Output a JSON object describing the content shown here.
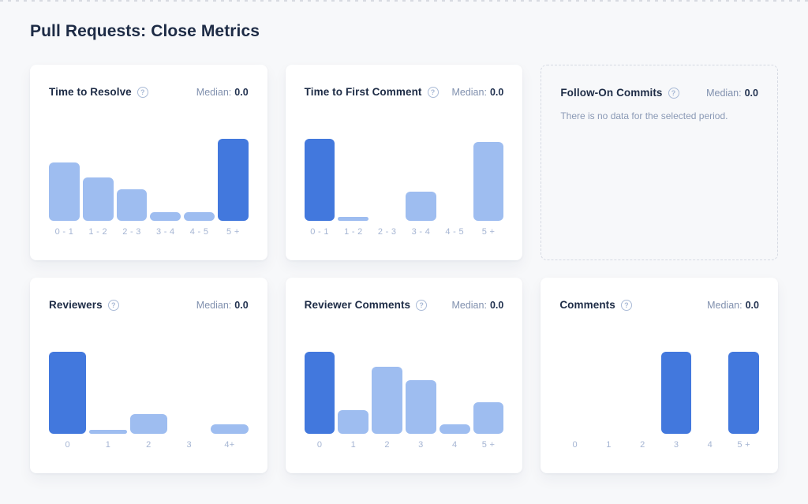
{
  "page": {
    "title": "Pull Requests: Close Metrics"
  },
  "labels": {
    "median_prefix": "Median:",
    "help_icon_glyph": "?"
  },
  "colors": {
    "page_background": "#f7f8fa",
    "card_background": "#ffffff",
    "bar_highlight": "#4278dd",
    "bar_default": "#9ebdf0",
    "axis_label": "#a5b5d3",
    "heading_text": "#1d2b45",
    "median_label": "#8090ae",
    "median_value": "#223250",
    "no_data_text": "#8a99b5",
    "dashed_border": "#d6dae3"
  },
  "chart_data": [
    {
      "type": "bar",
      "title": "Time to Resolve",
      "median": "0.0",
      "categories": [
        "0 - 1",
        "1 - 2",
        "2 - 3",
        "3 - 4",
        "4 - 5",
        "5 +"
      ],
      "values_pct_of_max": [
        71,
        53,
        38,
        11,
        11,
        100
      ],
      "highlighted_categories": [
        "5 +"
      ],
      "y_axis": "hidden",
      "grid": false,
      "legend": "none"
    },
    {
      "type": "bar",
      "title": "Time to First Comment",
      "median": "0.0",
      "categories": [
        "0 - 1",
        "1 - 2",
        "2 - 3",
        "3 - 4",
        "4 - 5",
        "5 +"
      ],
      "values_pct_of_max": [
        100,
        5,
        0,
        36,
        0,
        96
      ],
      "highlighted_categories": [
        "0 - 1"
      ],
      "y_axis": "hidden",
      "grid": false,
      "legend": "none"
    },
    {
      "type": "none",
      "title": "Follow-On Commits",
      "median": "0.0",
      "no_data_message": "There is no data for the selected period.",
      "categories": [],
      "values_pct_of_max": [],
      "highlighted_categories": []
    },
    {
      "type": "bar",
      "title": "Reviewers",
      "median": "0.0",
      "categories": [
        "0",
        "1",
        "2",
        "3",
        "4+"
      ],
      "values_pct_of_max": [
        100,
        5,
        24,
        0,
        12
      ],
      "highlighted_categories": [
        "0"
      ],
      "y_axis": "hidden",
      "grid": false,
      "legend": "none"
    },
    {
      "type": "bar",
      "title": "Reviewer Comments",
      "median": "0.0",
      "categories": [
        "0",
        "1",
        "2",
        "3",
        "4",
        "5 +"
      ],
      "values_pct_of_max": [
        100,
        29,
        82,
        65,
        12,
        38
      ],
      "highlighted_categories": [
        "0"
      ],
      "y_axis": "hidden",
      "grid": false,
      "legend": "none"
    },
    {
      "type": "bar",
      "title": "Comments",
      "median": "0.0",
      "categories": [
        "0",
        "1",
        "2",
        "3",
        "4",
        "5 +"
      ],
      "values_pct_of_max": [
        0,
        0,
        0,
        100,
        0,
        100
      ],
      "highlighted_categories": [
        "3",
        "5 +"
      ],
      "y_axis": "hidden",
      "grid": false,
      "legend": "none"
    }
  ]
}
